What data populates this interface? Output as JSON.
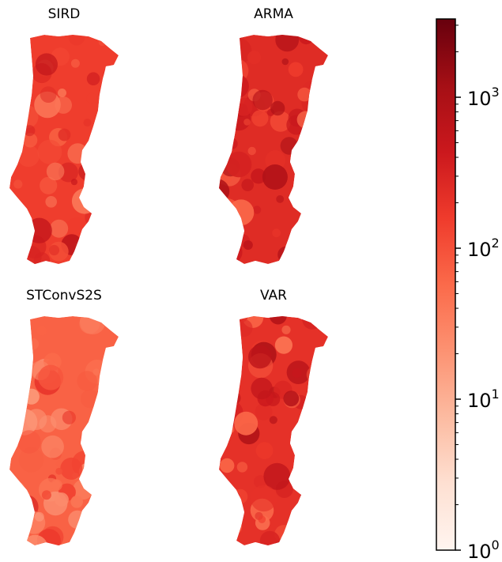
{
  "panels": [
    {
      "title": "SIRD",
      "intensity": 0.62,
      "seed": 11
    },
    {
      "title": "ARMA",
      "intensity": 0.68,
      "seed": 23
    },
    {
      "title": "STConvS2S",
      "intensity": 0.52,
      "seed": 37
    },
    {
      "title": "VAR",
      "intensity": 0.66,
      "seed": 53
    }
  ],
  "colorbar": {
    "colormap": "Reds",
    "scale": "log",
    "range": [
      1,
      3300
    ],
    "ticks": [
      {
        "base": "10",
        "exp": "0",
        "value": 1
      },
      {
        "base": "10",
        "exp": "1",
        "value": 10
      },
      {
        "base": "10",
        "exp": "2",
        "value": 100
      },
      {
        "base": "10",
        "exp": "3",
        "value": 1000
      }
    ],
    "colors": [
      "#fff5f0",
      "#fee0d2",
      "#fcbba1",
      "#fc9272",
      "#fb6a4a",
      "#ef3b2c",
      "#cb181d",
      "#a50f15",
      "#67000d"
    ]
  }
}
